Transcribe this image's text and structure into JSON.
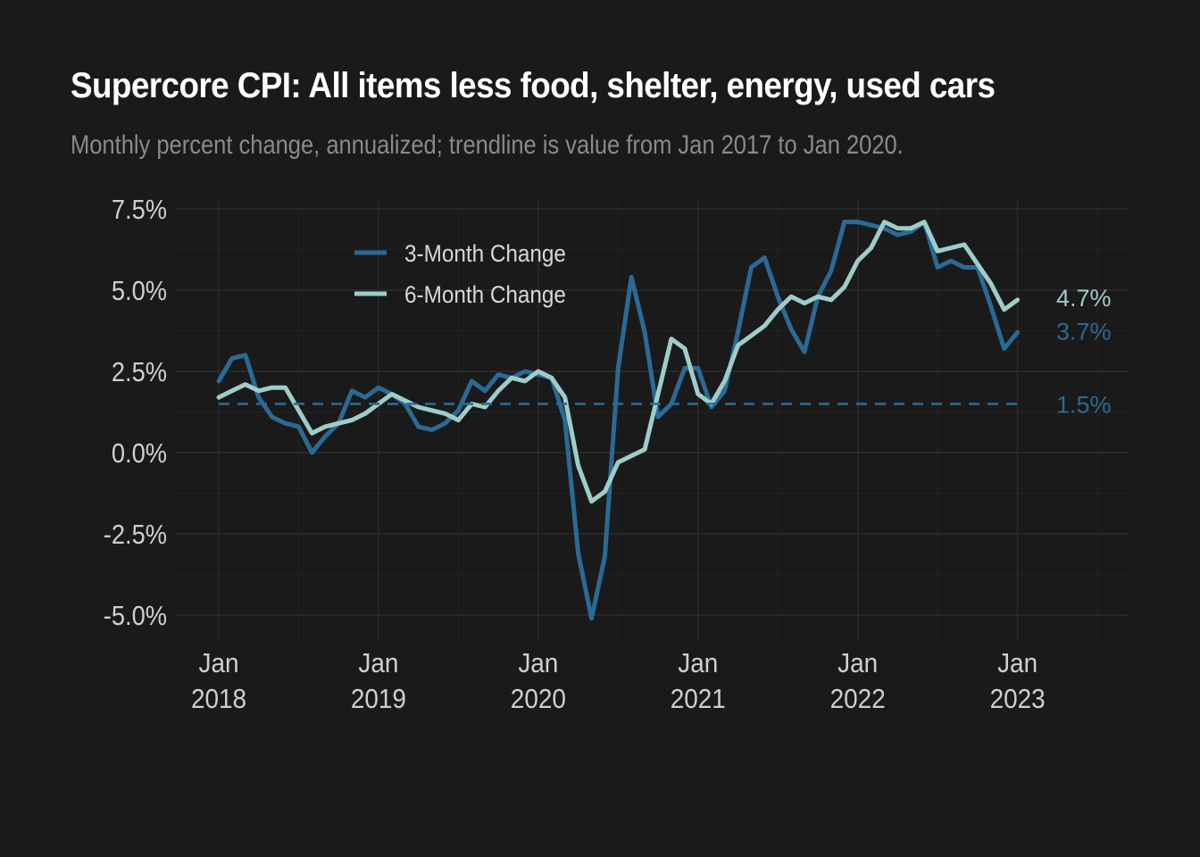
{
  "chart_data": {
    "type": "line",
    "title": "Supercore CPI: All items less food, shelter, energy, used cars",
    "subtitle": "Monthly percent change, annualized; trendline is value from Jan 2017 to Jan 2020.",
    "ylim": [
      -5.5,
      7.75
    ],
    "y_ticks": [
      {
        "value": 7.5,
        "label": "7.5%"
      },
      {
        "value": 5.0,
        "label": "5.0%"
      },
      {
        "value": 2.5,
        "label": "2.5%"
      },
      {
        "value": 0.0,
        "label": "0.0%"
      },
      {
        "value": -2.5,
        "label": "-2.5%"
      },
      {
        "value": -5.0,
        "label": "-5.0%"
      }
    ],
    "x_ticks": [
      {
        "month": 0,
        "line1": "Jan",
        "line2": "2018"
      },
      {
        "month": 12,
        "line1": "Jan",
        "line2": "2019"
      },
      {
        "month": 24,
        "line1": "Jan",
        "line2": "2020"
      },
      {
        "month": 36,
        "line1": "Jan",
        "line2": "2021"
      },
      {
        "month": 48,
        "line1": "Jan",
        "line2": "2022"
      },
      {
        "month": 60,
        "line1": "Jan",
        "line2": "2023"
      }
    ],
    "x_start": "Jan 2018",
    "x_end": "Jan 2023",
    "legend_position": "top-left",
    "grid": true,
    "series": [
      {
        "name": "3-Month Change",
        "color": "#2a6a95",
        "end_label": "3.7%",
        "values": [
          2.2,
          2.9,
          3.0,
          1.7,
          1.1,
          0.9,
          0.8,
          0.0,
          0.5,
          0.9,
          1.9,
          1.7,
          2.0,
          1.8,
          1.5,
          0.8,
          0.7,
          0.9,
          1.3,
          2.2,
          1.9,
          2.4,
          2.3,
          2.5,
          2.4,
          2.3,
          1.0,
          -3.1,
          -5.1,
          -3.2,
          2.6,
          5.4,
          3.7,
          1.1,
          1.5,
          2.6,
          2.6,
          1.4,
          1.9,
          3.7,
          5.7,
          6.0,
          4.8,
          3.8,
          3.1,
          4.8,
          5.6,
          7.1,
          7.1,
          7.0,
          6.9,
          6.7,
          6.8,
          7.1,
          5.7,
          5.9,
          5.7,
          5.7,
          4.5,
          3.2,
          3.7
        ]
      },
      {
        "name": "6-Month Change",
        "color": "#9ecdc9",
        "end_label": "4.7%",
        "values": [
          1.7,
          1.9,
          2.1,
          1.9,
          2.0,
          2.0,
          1.3,
          0.6,
          0.8,
          0.9,
          1.0,
          1.2,
          1.5,
          1.8,
          1.6,
          1.4,
          1.3,
          1.2,
          1.0,
          1.5,
          1.4,
          1.9,
          2.3,
          2.2,
          2.5,
          2.3,
          1.7,
          -0.4,
          -1.5,
          -1.2,
          -0.3,
          -0.1,
          0.1,
          1.8,
          3.5,
          3.2,
          1.8,
          1.5,
          2.2,
          3.3,
          3.6,
          3.9,
          4.4,
          4.8,
          4.6,
          4.8,
          4.7,
          5.1,
          5.9,
          6.3,
          7.1,
          6.9,
          6.9,
          7.1,
          6.2,
          6.3,
          6.4,
          5.8,
          5.2,
          4.4,
          4.7
        ]
      },
      {
        "name": "Trendline",
        "color": "#2a6a95",
        "dashed": true,
        "end_label": "1.5%",
        "values": [
          1.5,
          1.5
        ]
      }
    ]
  }
}
